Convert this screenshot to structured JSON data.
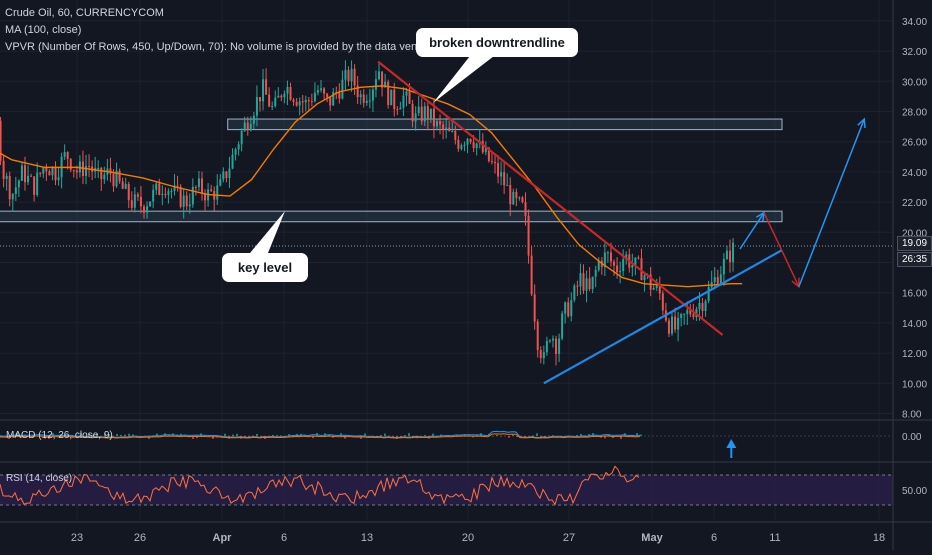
{
  "header": {
    "title": "Crude Oil, 60, CURRENCYCOM",
    "ma_label": "MA (100, close)",
    "vpvr_label": "VPVR (Number Of Rows, 450, Up/Down, 70): No volume is provided by the data vendor."
  },
  "annotations": {
    "broken_downtrendline": "broken downtrendline",
    "key_level": "key level"
  },
  "indicators": {
    "macd_label": "MACD (12, 26, close, 9)",
    "rsi_label": "RSI (14, close)",
    "macd_tick": "0.00",
    "rsi_tick": "50.00"
  },
  "price_badge": {
    "price": "19.09",
    "countdown": "26:35"
  },
  "colors": {
    "background": "#131722",
    "candle_up": "#26a69a",
    "candle_down": "#ef5350",
    "ma_line": "#f57c00",
    "downtrend_line": "#c62828",
    "uptrend_line": "#1e88e5",
    "zone_fill": "#2a3a4a",
    "rsi_line": "#ff7043",
    "rsi_band": "#2a1f4a"
  },
  "chart_data": {
    "type": "candlestick",
    "symbol": "Crude Oil",
    "interval": "60",
    "source": "CURRENCYCOM",
    "y_ticks": [
      "34.00",
      "32.00",
      "30.00",
      "28.00",
      "26.00",
      "24.00",
      "22.00",
      "20.00",
      "18.00",
      "16.00",
      "14.00",
      "12.00",
      "10.00",
      "8.00"
    ],
    "x_ticks": [
      "23",
      "26",
      "Apr",
      "6",
      "13",
      "20",
      "27",
      "May",
      "6",
      "11",
      "18"
    ],
    "ylim": [
      7.5,
      34.5
    ],
    "x_range_days": [
      -13.8,
      25.9
    ],
    "price_path": [
      [
        -13.8,
        30.2
      ],
      [
        -13.2,
        29.0
      ],
      [
        -12.8,
        26.5
      ],
      [
        -12.3,
        24.0
      ],
      [
        -12.0,
        22.5
      ],
      [
        -11.8,
        21.0
      ],
      [
        -11.4,
        23.5
      ],
      [
        -11.0,
        22.0
      ],
      [
        -10.6,
        25.5
      ],
      [
        -10.2,
        27.5
      ],
      [
        -9.9,
        24.0
      ],
      [
        -9.5,
        22.5
      ],
      [
        -9.0,
        24.0
      ],
      [
        -8.5,
        23.0
      ],
      [
        -8.0,
        24.5
      ],
      [
        -7.5,
        24.0
      ],
      [
        -7.0,
        25.2
      ],
      [
        -6.5,
        24.0
      ],
      [
        -6.0,
        24.5
      ],
      [
        -5.5,
        23.5
      ],
      [
        -5.0,
        24.0
      ],
      [
        -4.5,
        23.0
      ],
      [
        -4.0,
        22.0
      ],
      [
        -3.5,
        21.8
      ],
      [
        -3.0,
        22.5
      ],
      [
        -2.5,
        23.2
      ],
      [
        -2.0,
        22.5
      ],
      [
        -1.5,
        22.0
      ],
      [
        -1.0,
        23.0
      ],
      [
        -0.5,
        22.5
      ],
      [
        0.0,
        22.8
      ],
      [
        0.5,
        24.5
      ],
      [
        1.0,
        26.5
      ],
      [
        1.5,
        28.0
      ],
      [
        2.0,
        29.5
      ],
      [
        2.5,
        28.0
      ],
      [
        3.0,
        29.8
      ],
      [
        3.5,
        29.0
      ],
      [
        4.0,
        28.5
      ],
      [
        4.5,
        29.5
      ],
      [
        5.0,
        28.5
      ],
      [
        5.5,
        29.5
      ],
      [
        6.0,
        30.5
      ],
      [
        6.5,
        29.0
      ],
      [
        7.0,
        29.5
      ],
      [
        7.3,
        31.0
      ],
      [
        7.6,
        29.5
      ],
      [
        8.0,
        28.5
      ],
      [
        8.5,
        29.0
      ],
      [
        9.0,
        27.5
      ],
      [
        9.5,
        28.0
      ],
      [
        10.0,
        27.0
      ],
      [
        10.5,
        26.5
      ],
      [
        11.0,
        26.0
      ],
      [
        11.5,
        26.5
      ],
      [
        12.0,
        25.5
      ],
      [
        12.5,
        24.5
      ],
      [
        13.0,
        23.5
      ],
      [
        13.5,
        22.0
      ],
      [
        14.0,
        21.5
      ],
      [
        14.3,
        17.0
      ],
      [
        14.6,
        13.0
      ],
      [
        14.9,
        11.5
      ],
      [
        15.2,
        13.5
      ],
      [
        15.5,
        12.5
      ],
      [
        15.8,
        14.5
      ],
      [
        16.2,
        15.5
      ],
      [
        16.6,
        17.0
      ],
      [
        17.0,
        16.0
      ],
      [
        17.4,
        18.0
      ],
      [
        17.8,
        18.5
      ],
      [
        18.2,
        17.5
      ],
      [
        18.6,
        18.5
      ],
      [
        19.0,
        17.8
      ],
      [
        19.4,
        17.5
      ],
      [
        19.8,
        16.5
      ],
      [
        20.2,
        16.0
      ],
      [
        20.6,
        14.0
      ],
      [
        21.0,
        13.5
      ],
      [
        21.4,
        14.5
      ],
      [
        21.8,
        15.0
      ],
      [
        22.2,
        15.5
      ],
      [
        22.6,
        16.5
      ],
      [
        23.0,
        17.5
      ],
      [
        23.4,
        18.5
      ],
      [
        23.7,
        19.1
      ]
    ],
    "ma_100_path": [
      [
        -13.8,
        30.0
      ],
      [
        -12.5,
        28.0
      ],
      [
        -11.0,
        26.0
      ],
      [
        -9.5,
        24.8
      ],
      [
        -8.0,
        24.3
      ],
      [
        -6.5,
        24.3
      ],
      [
        -5.0,
        24.0
      ],
      [
        -3.5,
        23.6
      ],
      [
        -2.0,
        23.0
      ],
      [
        -0.5,
        22.5
      ],
      [
        0.5,
        22.4
      ],
      [
        1.5,
        23.5
      ],
      [
        2.5,
        25.5
      ],
      [
        3.5,
        27.3
      ],
      [
        4.5,
        28.5
      ],
      [
        5.5,
        29.3
      ],
      [
        6.5,
        29.6
      ],
      [
        7.5,
        29.7
      ],
      [
        8.5,
        29.5
      ],
      [
        9.5,
        29.0
      ],
      [
        10.5,
        28.5
      ],
      [
        11.5,
        27.8
      ],
      [
        12.5,
        26.6
      ],
      [
        13.5,
        24.8
      ],
      [
        14.5,
        23.0
      ],
      [
        15.5,
        21.0
      ],
      [
        16.5,
        19.2
      ],
      [
        17.5,
        18.0
      ],
      [
        18.5,
        17.0
      ],
      [
        19.5,
        16.6
      ],
      [
        20.5,
        16.5
      ],
      [
        21.5,
        16.4
      ],
      [
        22.5,
        16.5
      ],
      [
        23.5,
        16.6
      ],
      [
        24.0,
        16.6
      ]
    ],
    "zones": [
      {
        "name": "upper-zone",
        "x0": 0.4,
        "x1": 25.9,
        "y0": 26.8,
        "y1": 27.5
      },
      {
        "name": "key-level-zone",
        "x0": -13.3,
        "x1": 25.9,
        "y0": 20.7,
        "y1": 21.4
      }
    ],
    "trendlines": [
      {
        "name": "broken-downtrendline",
        "color": "#c62828",
        "points": [
          [
            7.3,
            31.3
          ],
          [
            23.1,
            13.2
          ]
        ]
      },
      {
        "name": "ascending-trendline",
        "color": "#1e88e5",
        "points": [
          [
            14.9,
            10.0
          ],
          [
            25.8,
            18.8
          ]
        ]
      }
    ],
    "projection_arrows": [
      {
        "name": "arrow-up-to-zone",
        "color": "#2196f3",
        "from": [
          23.9,
          18.9
        ],
        "to": [
          25.0,
          21.3
        ]
      },
      {
        "name": "arrow-down-to-trendline",
        "color": "#c62828",
        "from": [
          25.0,
          21.3
        ],
        "to": [
          26.6,
          16.4
        ]
      },
      {
        "name": "arrow-up-to-target",
        "color": "#2196f3",
        "from": [
          26.6,
          16.4
        ],
        "to": [
          29.6,
          27.5
        ]
      }
    ],
    "macd_marker_arrow": {
      "x": 23.5,
      "direction": "up"
    },
    "rsi_levels": [
      70,
      30
    ],
    "last_price": 19.09
  }
}
